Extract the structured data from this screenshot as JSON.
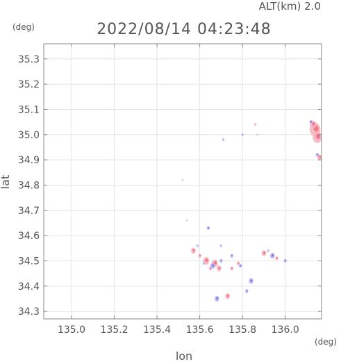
{
  "chart_data": {
    "type": "scatter",
    "title": "2022/08/14 04:23:48",
    "altitude_label": "ALT(km) 2.0",
    "xlabel": "lon",
    "ylabel": "lat",
    "x_unit": "(deg)",
    "y_unit": "(deg)",
    "xlim": [
      134.87,
      136.17
    ],
    "ylim": [
      34.27,
      35.36
    ],
    "x_ticks": [
      135.0,
      135.2,
      135.4,
      135.6,
      135.8,
      136.0
    ],
    "x_tick_labels": [
      "135.0",
      "135.2",
      "135.4",
      "135.6",
      "135.8",
      "136.0"
    ],
    "y_ticks": [
      34.3,
      34.4,
      34.5,
      34.6,
      34.7,
      34.8,
      34.9,
      35.0,
      35.1,
      35.2,
      35.3
    ],
    "y_tick_labels": [
      "34.3",
      "34.4",
      "34.5",
      "34.6",
      "34.7",
      "34.8",
      "34.9",
      "35.0",
      "35.1",
      "35.2",
      "35.3"
    ],
    "grid": true,
    "colors": {
      "frame": "#888888",
      "grid": "#e4e4e4",
      "text": "#555555",
      "positive": "#f06a7c",
      "positive_light": "#f8b4bf",
      "negative": "#6f6fe6",
      "negative_light": "#b8b8f4"
    },
    "series": [
      {
        "polarity": "positive",
        "points": [
          {
            "lon": 136.14,
            "lat": 35.02,
            "s": 7
          },
          {
            "lon": 136.15,
            "lat": 34.99,
            "s": 6
          },
          {
            "lon": 136.13,
            "lat": 35.04,
            "s": 4
          },
          {
            "lon": 136.16,
            "lat": 34.91,
            "s": 3
          },
          {
            "lon": 135.57,
            "lat": 34.54,
            "s": 3
          },
          {
            "lon": 135.63,
            "lat": 34.5,
            "s": 4
          },
          {
            "lon": 135.67,
            "lat": 34.49,
            "s": 4
          },
          {
            "lon": 135.69,
            "lat": 34.47,
            "s": 3
          },
          {
            "lon": 135.65,
            "lat": 34.47,
            "s": 2
          },
          {
            "lon": 135.73,
            "lat": 34.36,
            "s": 3
          },
          {
            "lon": 135.9,
            "lat": 34.53,
            "s": 3
          },
          {
            "lon": 135.96,
            "lat": 34.51,
            "s": 2
          },
          {
            "lon": 135.86,
            "lat": 35.04,
            "s": 1.5
          },
          {
            "lon": 135.78,
            "lat": 34.49,
            "s": 2
          },
          {
            "lon": 135.75,
            "lat": 34.47,
            "s": 2
          },
          {
            "lon": 135.6,
            "lat": 34.52,
            "s": 2
          }
        ]
      },
      {
        "polarity": "negative",
        "points": [
          {
            "lon": 136.12,
            "lat": 35.05,
            "s": 2
          },
          {
            "lon": 136.15,
            "lat": 34.92,
            "s": 2
          },
          {
            "lon": 135.8,
            "lat": 35.0,
            "s": 1.5
          },
          {
            "lon": 135.71,
            "lat": 34.98,
            "s": 1.5
          },
          {
            "lon": 135.52,
            "lat": 34.82,
            "s": 1
          },
          {
            "lon": 135.54,
            "lat": 34.66,
            "s": 1
          },
          {
            "lon": 135.64,
            "lat": 34.63,
            "s": 2
          },
          {
            "lon": 135.59,
            "lat": 34.56,
            "s": 1.5
          },
          {
            "lon": 135.7,
            "lat": 34.56,
            "s": 1.5
          },
          {
            "lon": 135.75,
            "lat": 34.52,
            "s": 2
          },
          {
            "lon": 135.66,
            "lat": 34.48,
            "s": 3
          },
          {
            "lon": 135.7,
            "lat": 34.5,
            "s": 2
          },
          {
            "lon": 135.79,
            "lat": 34.48,
            "s": 2
          },
          {
            "lon": 135.84,
            "lat": 34.42,
            "s": 3
          },
          {
            "lon": 135.82,
            "lat": 34.38,
            "s": 2
          },
          {
            "lon": 135.68,
            "lat": 34.35,
            "s": 3
          },
          {
            "lon": 135.94,
            "lat": 34.52,
            "s": 3
          },
          {
            "lon": 136.0,
            "lat": 34.5,
            "s": 2
          },
          {
            "lon": 135.92,
            "lat": 34.54,
            "s": 1.5
          },
          {
            "lon": 135.87,
            "lat": 35.0,
            "s": 1
          },
          {
            "lon": 135.62,
            "lat": 34.49,
            "s": 1.5
          }
        ]
      }
    ]
  }
}
